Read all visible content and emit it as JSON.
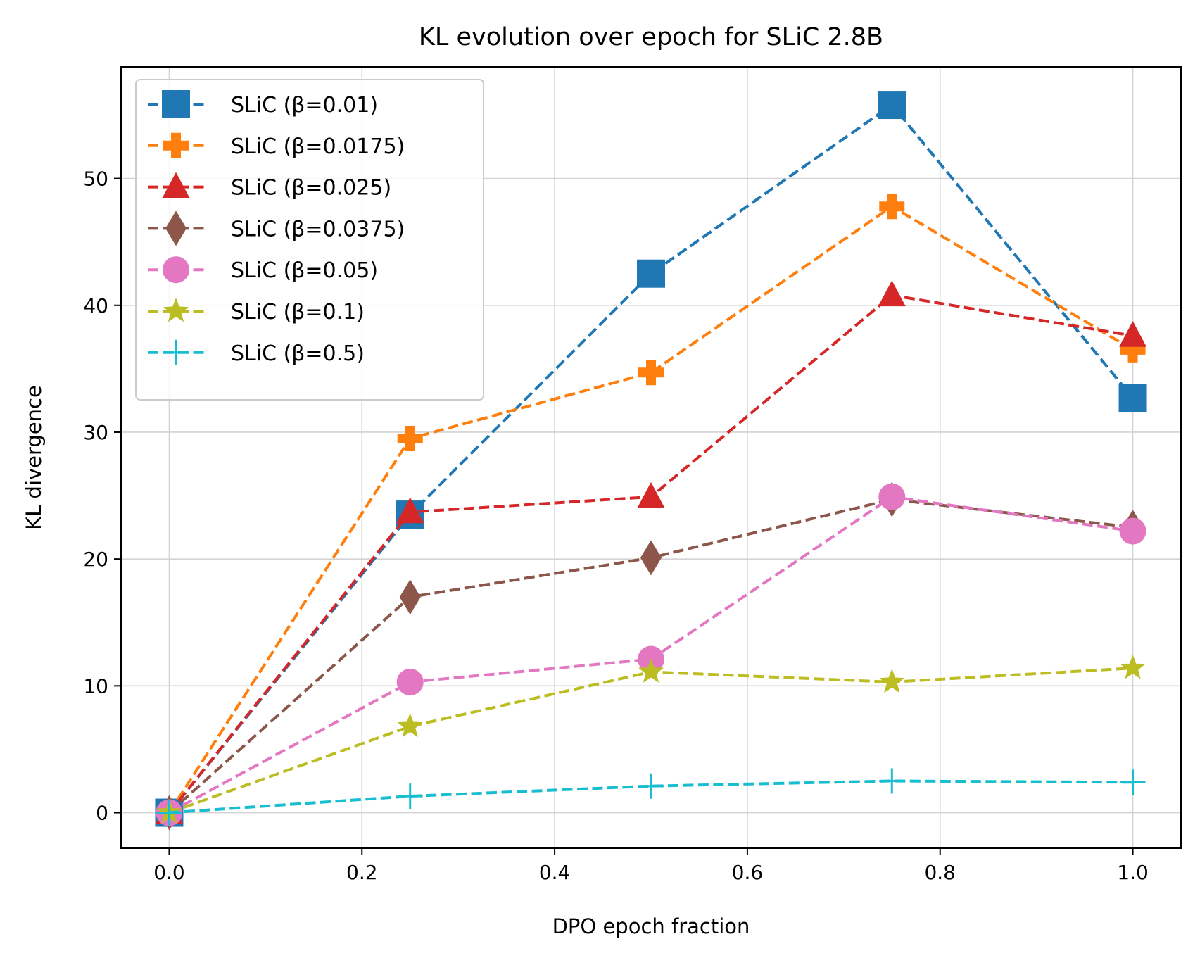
{
  "chart_data": {
    "type": "line",
    "title": "KL evolution over epoch for SLiC 2.8B",
    "xlabel": "DPO epoch fraction",
    "ylabel": "KL divergence",
    "xlim": [
      -0.05,
      1.05
    ],
    "ylim": [
      -2.8,
      58.8
    ],
    "x_ticks": [
      0.0,
      0.2,
      0.4,
      0.6,
      0.8,
      1.0
    ],
    "x_tick_labels": [
      "0.0",
      "0.2",
      "0.4",
      "0.6",
      "0.8",
      "1.0"
    ],
    "y_ticks": [
      0,
      10,
      20,
      30,
      40,
      50
    ],
    "y_tick_labels": [
      "0",
      "10",
      "20",
      "30",
      "40",
      "50"
    ],
    "grid": true,
    "legend_position": "top-left",
    "x": [
      0.0,
      0.25,
      0.5,
      0.75,
      1.0
    ],
    "series": [
      {
        "name": "SLiC (β=0.01)",
        "label": "SLiC (β=0.01)",
        "color": "#1f77b4",
        "marker": "square",
        "values": [
          0,
          23.5,
          42.5,
          55.8,
          32.7
        ]
      },
      {
        "name": "SLiC (β=0.0175)",
        "label": "SLiC (β=0.0175)",
        "color": "#ff7f0e",
        "marker": "plus-filled",
        "values": [
          0,
          29.5,
          34.7,
          47.8,
          36.5
        ]
      },
      {
        "name": "SLiC (β=0.025)",
        "label": "SLiC (β=0.025)",
        "color": "#d62728",
        "marker": "triangle",
        "values": [
          0,
          23.7,
          24.9,
          40.8,
          37.6
        ]
      },
      {
        "name": "SLiC (β=0.0375)",
        "label": "SLiC (β=0.0375)",
        "color": "#8c564b",
        "marker": "diamond",
        "values": [
          0,
          17.0,
          20.1,
          24.7,
          22.5
        ]
      },
      {
        "name": "SLiC (β=0.05)",
        "label": "SLiC (β=0.05)",
        "color": "#e377c2",
        "marker": "circle",
        "values": [
          0,
          10.3,
          12.1,
          24.9,
          22.2
        ]
      },
      {
        "name": "SLiC (β=0.1)",
        "label": "SLiC (β=0.1)",
        "color": "#bcbd22",
        "marker": "star",
        "values": [
          0,
          6.8,
          11.1,
          10.3,
          11.4
        ]
      },
      {
        "name": "SLiC (β=0.5)",
        "label": "SLiC (β=0.5)",
        "color": "#17becf",
        "marker": "plus-thin",
        "values": [
          0,
          1.3,
          2.1,
          2.5,
          2.4
        ]
      }
    ]
  }
}
